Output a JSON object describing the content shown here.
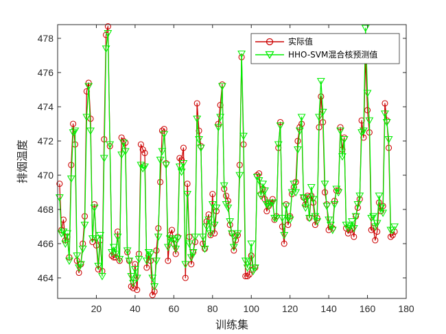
{
  "chart_data": {
    "type": "line",
    "title": "",
    "xlabel": "训练集",
    "ylabel": "排烟温度",
    "xlim": [
      0,
      180
    ],
    "ylim": [
      462.8,
      478.8
    ],
    "xticks": [
      20,
      40,
      60,
      80,
      100,
      120,
      140,
      160,
      180
    ],
    "yticks": [
      464,
      466,
      468,
      470,
      472,
      474,
      476,
      478
    ],
    "grid": false,
    "legend_position": "top-right",
    "series": [
      {
        "name": "实际值",
        "color": "#cc0000",
        "marker": "circle",
        "values": [
          469.5,
          466.8,
          467.4,
          466.2,
          466.4,
          465.2,
          470.6,
          473.0,
          471.8,
          465.0,
          464.3,
          464.8,
          466.0,
          467.6,
          474.9,
          475.4,
          473.3,
          466.1,
          468.3,
          465.9,
          464.5,
          466.2,
          464.4,
          472.1,
          478.2,
          478.7,
          471.7,
          465.3,
          465.2,
          465.2,
          466.7,
          465.0,
          472.2,
          472.0,
          471.9,
          465.5,
          465.0,
          463.5,
          463.4,
          464.8,
          463.3,
          465.4,
          471.8,
          471.5,
          471.3,
          464.6,
          465.3,
          465.0,
          463.0,
          463.2,
          465.6,
          466.9,
          469.6,
          472.6,
          472.7,
          470.7,
          465.0,
          466.5,
          466.8,
          466.0,
          465.4,
          466.4,
          471.0,
          470.9,
          471.6,
          464.0,
          469.5,
          466.4,
          464.8,
          465.5,
          466.1,
          474.2,
          472.6,
          471.7,
          466.0,
          465.7,
          467.3,
          467.7,
          466.5,
          468.9,
          466.6,
          467.9,
          473.0,
          474.1,
          475.3,
          469.2,
          468.8,
          468.5,
          467.1,
          466.6,
          465.6,
          466.2,
          466.5,
          470.6,
          476.9,
          471.8,
          464.1,
          464.1,
          464.2,
          465.3,
          464.5,
          464.6,
          470.0,
          470.1,
          468.9,
          469.2,
          468.6,
          467.9,
          468.2,
          468.4,
          468.6,
          467.4,
          467.6,
          471.6,
          473.1,
          467.0,
          466.0,
          468.3,
          467.1,
          467.6,
          468.9,
          469.3,
          469.6,
          472.0,
          472.8,
          473.0,
          468.7,
          468.3,
          468.8,
          467.5,
          468.8,
          468.4,
          467.1,
          467.5,
          472.8,
          474.6,
          473.1,
          469.0,
          468.3,
          466.8,
          467.0,
          466.9,
          468.5,
          469.1,
          469.1,
          472.8,
          471.5,
          472.2,
          466.9,
          466.6,
          466.8,
          466.9,
          466.4,
          467.6,
          468.1,
          468.6,
          473.2,
          472.2,
          476.9,
          473.8,
          472.5,
          466.8,
          466.9,
          466.2,
          466.7,
          468.4,
          467.9,
          468.2,
          474.2,
          473.2,
          471.6,
          466.4,
          466.5,
          466.7
        ],
        "values_note": ""
      },
      {
        "name": "HHO-SVM混合核预测值",
        "color": "#00ee00",
        "marker": "triangle-down",
        "values": [
          468.7,
          466.6,
          466.7,
          466.0,
          466.6,
          465.0,
          469.8,
          472.5,
          472.6,
          465.3,
          464.6,
          464.8,
          465.7,
          467.1,
          473.4,
          475.2,
          472.6,
          466.3,
          468.1,
          466.3,
          464.7,
          466.5,
          464.1,
          471.0,
          477.4,
          478.3,
          471.8,
          465.5,
          465.8,
          465.4,
          466.4,
          465.1,
          471.2,
          471.9,
          471.4,
          465.6,
          465.0,
          464.1,
          463.7,
          464.5,
          464.0,
          465.1,
          470.6,
          470.4,
          470.5,
          465.0,
          465.5,
          465.4,
          464.0,
          463.5,
          465.0,
          466.4,
          470.9,
          471.4,
          472.4,
          470.6,
          465.8,
          466.3,
          466.3,
          466.2,
          465.7,
          466.3,
          470.5,
          470.2,
          470.7,
          464.8,
          468.9,
          466.0,
          465.2,
          465.5,
          466.4,
          473.3,
          472.1,
          471.6,
          466.4,
          465.7,
          467.0,
          467.4,
          466.6,
          468.3,
          467.1,
          468.1,
          472.8,
          473.4,
          475.2,
          469.4,
          468.3,
          468.1,
          467.3,
          466.6,
          465.8,
          466.4,
          466.6,
          470.0,
          477.1,
          472.3,
          465.0,
          464.6,
          465.0,
          466.0,
          464.4,
          464.6,
          469.9,
          469.7,
          468.8,
          469.5,
          469.1,
          468.3,
          468.2,
          468.4,
          468.4,
          467.5,
          467.5,
          471.8,
          472.9,
          467.5,
          466.5,
          468.2,
          467.5,
          467.4,
          469.0,
          469.5,
          469.0,
          471.5,
          472.6,
          473.4,
          468.7,
          468.1,
          468.7,
          467.5,
          469.3,
          468.6,
          467.6,
          467.3,
          473.4,
          475.5,
          473.7,
          469.5,
          468.2,
          467.4,
          467.1,
          466.8,
          468.3,
          469.2,
          469.0,
          472.6,
          471.1,
          472.1,
          467.1,
          466.9,
          467.0,
          467.3,
          466.9,
          467.6,
          468.3,
          468.8,
          472.5,
          472.6,
          478.6,
          474.8,
          473.2,
          467.5,
          467.6,
          467.0,
          467.2,
          468.8,
          468.1,
          467.8,
          473.6,
          473.1,
          472.1,
          466.8,
          466.8,
          467.0
        ],
        "values_note": ""
      }
    ]
  }
}
